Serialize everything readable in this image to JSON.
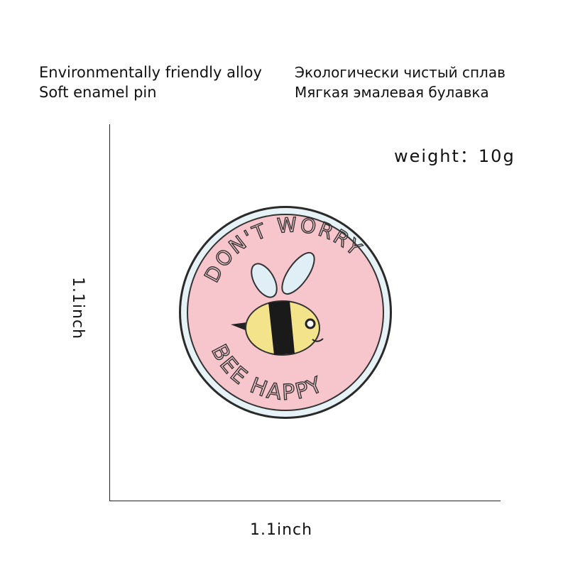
{
  "features_en": [
    "Environmentally friendly alloy",
    "Soft enamel pin"
  ],
  "features_ru": [
    "Экологически чистый сплав",
    "Мягкая эмалевая булавка"
  ],
  "weight_label": "weight：10g",
  "dimensions": {
    "height": "1.1inch",
    "width": "1.1inch"
  },
  "pin": {
    "top_text": "DON'T WORRY",
    "bottom_text": "BEE HAPPY",
    "colors": {
      "face": "#f7c5cc",
      "rim": "#e6f2f6",
      "outline": "#2a2a2a",
      "bee_body": "#f3e38a",
      "wings": "#dfeff5"
    }
  }
}
